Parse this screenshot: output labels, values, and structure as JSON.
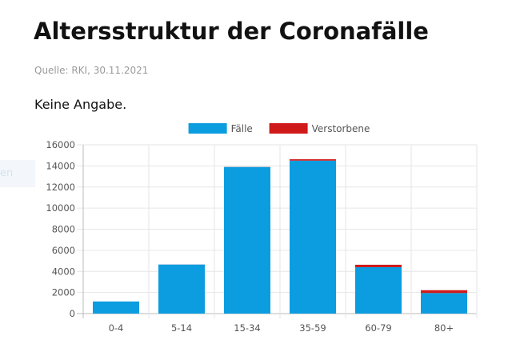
{
  "header": {
    "title": "Altersstruktur der Coronafälle",
    "source": "Quelle: RKI, 30.11.2021",
    "note": "Keine Angabe."
  },
  "side_tab": {
    "text": "en"
  },
  "chart_data": {
    "type": "bar",
    "stacked": true,
    "categories": [
      "0-4",
      "5-14",
      "15-34",
      "35-59",
      "60-79",
      "80+"
    ],
    "series": [
      {
        "name": "Fälle",
        "color": "#0b9de0",
        "values": [
          1150,
          4650,
          13900,
          14500,
          4400,
          1950
        ]
      },
      {
        "name": "Verstorbene",
        "color": "#d01a1a",
        "values": [
          0,
          5,
          10,
          130,
          230,
          270
        ]
      }
    ],
    "ylim": [
      0,
      16000
    ],
    "yticks": [
      0,
      2000,
      4000,
      6000,
      8000,
      10000,
      12000,
      14000,
      16000
    ],
    "grid": true,
    "legend": "top"
  }
}
